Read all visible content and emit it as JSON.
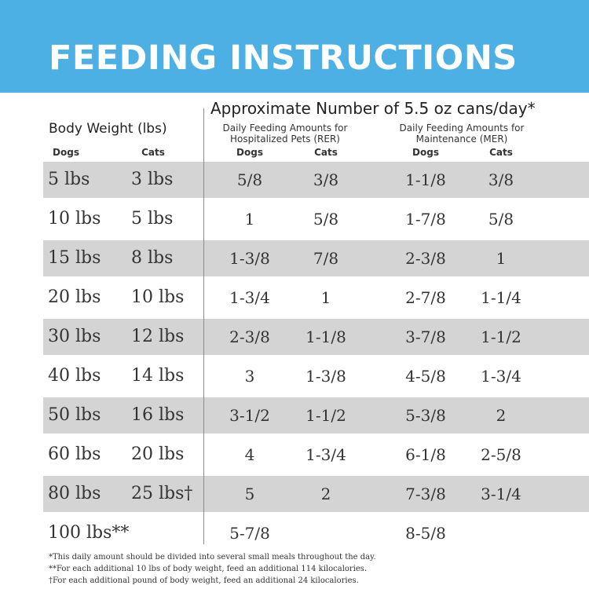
{
  "banner": {
    "title": "FEEDING INSTRUCTIONS",
    "color": "#4db0e4"
  },
  "header": {
    "main": "Approximate Number of 5.5 oz cans/day*",
    "body_weight": "Body Weight (lbs)",
    "rer_line1": "Daily Feeding Amounts for",
    "rer_line2": "Hospitalized Pets (RER)",
    "mer_line1": "Daily Feeding Amounts for",
    "mer_line2": "Maintenance (MER)",
    "col_dogs": "Dogs",
    "col_cats": "Cats"
  },
  "table": {
    "shade_color": "#d4d4d4",
    "rows": [
      {
        "dog": "5 lbs",
        "cat": "3 lbs",
        "rer_dog": "5/8",
        "rer_cat": "3/8",
        "mer_dog": "1-1/8",
        "mer_cat": "3/8"
      },
      {
        "dog": "10 lbs",
        "cat": "5 lbs",
        "rer_dog": "1",
        "rer_cat": "5/8",
        "mer_dog": "1-7/8",
        "mer_cat": "5/8"
      },
      {
        "dog": "15 lbs",
        "cat": "8 lbs",
        "rer_dog": "1-3/8",
        "rer_cat": "7/8",
        "mer_dog": "2-3/8",
        "mer_cat": "1"
      },
      {
        "dog": "20 lbs",
        "cat": "10 lbs",
        "rer_dog": "1-3/4",
        "rer_cat": "1",
        "mer_dog": "2-7/8",
        "mer_cat": "1-1/4"
      },
      {
        "dog": "30 lbs",
        "cat": "12 lbs",
        "rer_dog": "2-3/8",
        "rer_cat": "1-1/8",
        "mer_dog": "3-7/8",
        "mer_cat": "1-1/2"
      },
      {
        "dog": "40 lbs",
        "cat": "14 lbs",
        "rer_dog": "3",
        "rer_cat": "1-3/8",
        "mer_dog": "4-5/8",
        "mer_cat": "1-3/4"
      },
      {
        "dog": "50 lbs",
        "cat": "16 lbs",
        "rer_dog": "3-1/2",
        "rer_cat": "1-1/2",
        "mer_dog": "5-3/8",
        "mer_cat": "2"
      },
      {
        "dog": "60 lbs",
        "cat": "20 lbs",
        "rer_dog": "4",
        "rer_cat": "1-3/4",
        "mer_dog": "6-1/8",
        "mer_cat": "2-5/8"
      },
      {
        "dog": "80 lbs",
        "cat": "25 lbs†",
        "rer_dog": "5",
        "rer_cat": "2",
        "mer_dog": "7-3/8",
        "mer_cat": "3-1/4"
      },
      {
        "dog": "100 lbs**",
        "cat": "",
        "rer_dog": "5-7/8",
        "rer_cat": "",
        "mer_dog": "8-5/8",
        "mer_cat": ""
      }
    ]
  },
  "footnotes": [
    "*This daily amount should be divided into several small meals throughout the day.",
    "**For each additional 10 lbs of body weight, feed an additional 114 kilocalories.",
    "†For each additional pound of body weight, feed an additional 24 kilocalories."
  ]
}
